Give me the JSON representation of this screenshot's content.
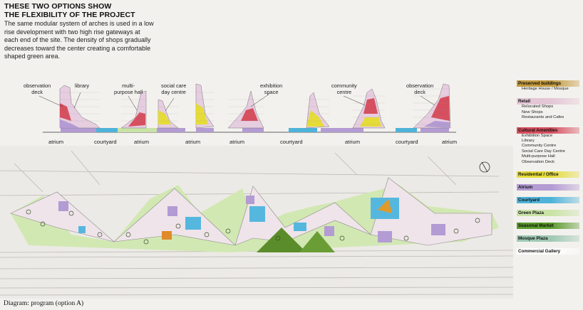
{
  "intro": {
    "title_line1": "THESE TWO OPTIONS SHOW",
    "title_line2": "THE FLEXIBILITY OF THE PROJECT",
    "body": "The same modular system of arches is used in a low rise development with two high rise gateways at each end of the site. The density of shops gradually decreases toward the center creating a comfortable shaped green area."
  },
  "elevation_labels": [
    {
      "id": "obs1",
      "line1": "observation",
      "line2": "deck"
    },
    {
      "id": "library",
      "line1": "library",
      "line2": ""
    },
    {
      "id": "multi",
      "line1": "multi-",
      "line2": "purpose hall"
    },
    {
      "id": "social",
      "line1": "social care",
      "line2": "day centre"
    },
    {
      "id": "exhib",
      "line1": "exhibition",
      "line2": "space"
    },
    {
      "id": "community",
      "line1": "community",
      "line2": "centre"
    },
    {
      "id": "obs2",
      "line1": "observation",
      "line2": "deck"
    }
  ],
  "base_labels": [
    "atrium",
    "courtyard",
    "atrium",
    "atrium",
    "atrium",
    "courtyard",
    "atrium",
    "courtyard",
    "atrium"
  ],
  "legend": [
    {
      "label": "Preserved buildings",
      "color": "#c49a3c",
      "subs": [
        "Heritage House / Mosque"
      ]
    },
    {
      "label": "Retail",
      "color": "#e4c6d6",
      "subs": [
        "Relocated Shops",
        "New Shops",
        "Restaurants and Cafes"
      ]
    },
    {
      "label": "Cultural Amenities",
      "color": "#d64f5e",
      "subs": [
        "Exhibition Space",
        "Library",
        "Community Centre",
        "Social Care Day Centre",
        "Multi-purpose Hall",
        "Observation Deck"
      ]
    },
    {
      "label": "Residential / Office",
      "color": "#e5dc3a",
      "subs": []
    },
    {
      "label": "Atrium",
      "color": "#b39bd3",
      "subs": []
    },
    {
      "label": "Courtyard",
      "color": "#4fb3d9",
      "subs": []
    },
    {
      "label": "Green Plaza",
      "color": "#c9e3a6",
      "subs": []
    },
    {
      "label": "Seasonal Market",
      "color": "#5a9a2c",
      "subs": []
    },
    {
      "label": "Mosque Plaza",
      "color": "#9fc9b3",
      "subs": []
    },
    {
      "label": "Commercial Gallery",
      "color": "#ffffff",
      "subs": []
    }
  ],
  "caption": "Diagram: program (option A)"
}
